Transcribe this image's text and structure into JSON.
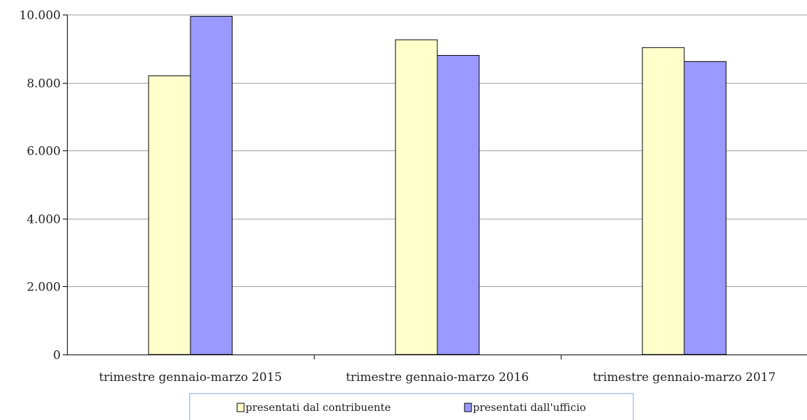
{
  "chart_data": {
    "type": "bar",
    "title": "",
    "xlabel": "",
    "ylabel": "",
    "categories": [
      "trimestre gennaio-marzo 2015",
      "trimestre gennaio-marzo 2016",
      "trimestre gennaio-marzo 2017"
    ],
    "series": [
      {
        "name": "presentati dal contribuente",
        "values": [
          8200,
          9260,
          9030
        ],
        "color": "#ffffcc"
      },
      {
        "name": "presentati dall'ufficio",
        "values": [
          9950,
          8800,
          8620
        ],
        "color": "#9999ff"
      }
    ],
    "ylim": [
      0,
      10000
    ],
    "y_ticks": [
      0,
      2000,
      4000,
      6000,
      8000,
      10000
    ],
    "y_tick_labels": [
      "0",
      "2.000",
      "4.000",
      "6.000",
      "8.000",
      "10.000"
    ],
    "grid": true,
    "legend_position": "bottom",
    "legend_border_color": "#7ea6d6"
  }
}
